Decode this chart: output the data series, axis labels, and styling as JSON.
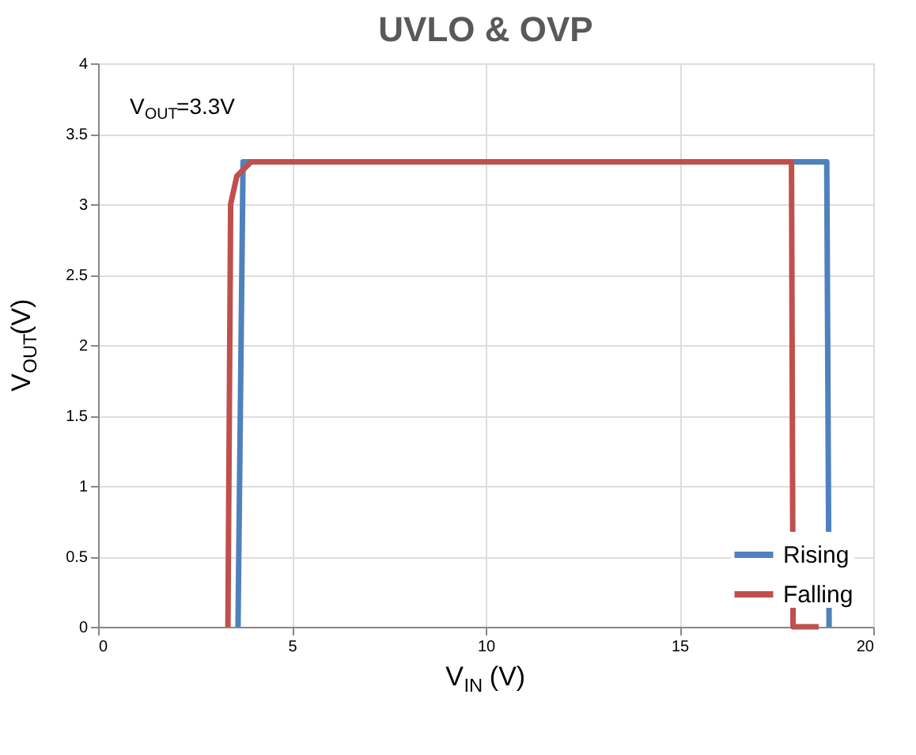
{
  "chart_data": {
    "type": "line",
    "title": "UVLO & OVP",
    "xlabel": "V$_{IN}$(V)",
    "ylabel": "V$_{OUT}$(V)",
    "annotations": [
      "V$_{OUT}$=3.3V"
    ],
    "series": [
      {
        "name": "Rising",
        "color": "#4f81bd",
        "x": [
          3.61,
          3.74,
          4.0,
          18.8,
          18.86
        ],
        "values": [
          0,
          3.3,
          3.3,
          3.3,
          0
        ]
      },
      {
        "name": "Falling",
        "color": "#c0504d",
        "x": [
          3.35,
          3.42,
          3.58,
          3.95,
          17.89,
          17.93,
          18.59
        ],
        "values": [
          0,
          3.0,
          3.2,
          3.3,
          3.3,
          0,
          0
        ]
      }
    ],
    "xlim": [
      0,
      20
    ],
    "xticks": [
      0,
      5,
      10,
      15,
      20
    ],
    "ylim": [
      0,
      4
    ],
    "yticks": [
      0,
      0.5,
      1,
      1.5,
      2,
      2.5,
      3,
      3.5,
      4
    ],
    "grid": true,
    "legend": "bottom right",
    "line_style": "solid",
    "marker": "none"
  }
}
